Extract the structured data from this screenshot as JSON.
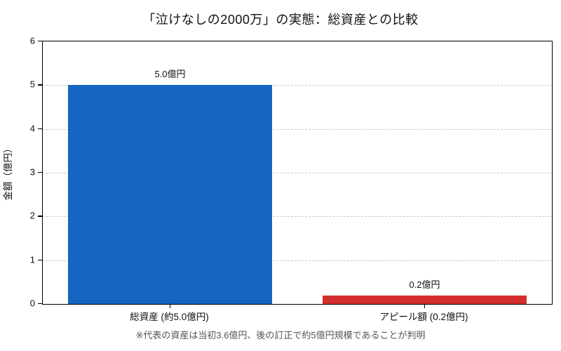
{
  "chart_data": {
    "type": "bar",
    "title": "「泣けなしの2000万」の実態：総資産との比較",
    "ylabel": "金額（億円）",
    "xlabel": "",
    "categories": [
      "総資産 (約5.0億円)",
      "アピール額 (0.2億円)"
    ],
    "values": [
      5.0,
      0.2
    ],
    "bar_labels": [
      "5.0億円",
      "0.2億円"
    ],
    "bar_colors": [
      "#1565c0",
      "#d32f2f"
    ],
    "ylim": [
      0,
      6
    ],
    "yticks": [
      0,
      1,
      2,
      3,
      4,
      5,
      6
    ],
    "grid": "dashed horizontal gridlines at integer y values",
    "legend": "none",
    "note": "※代表の資産は当初3.6億円、後の訂正で約5億円規模であることが判明"
  }
}
